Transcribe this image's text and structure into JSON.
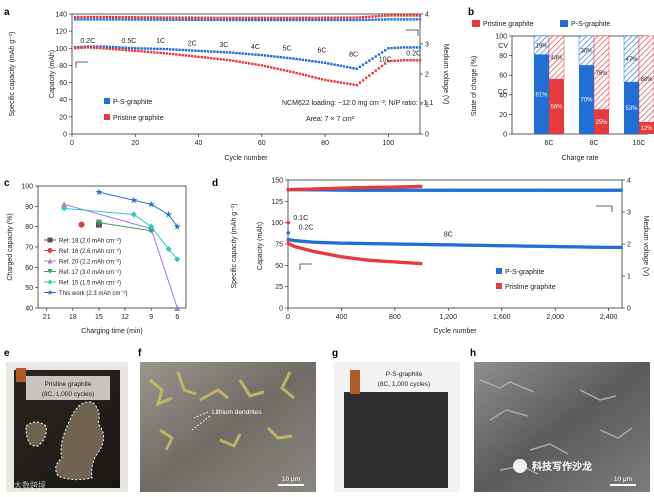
{
  "panels": {
    "a": "a",
    "b": "b",
    "c": "c",
    "d": "d",
    "e": "e",
    "f": "f",
    "g": "g",
    "h": "h"
  },
  "colors": {
    "blue": "#1f6fd6",
    "red": "#e8393c",
    "green": "#3aa35c",
    "purple": "#a678d6",
    "teal": "#2ec9c0",
    "darkgray": "#555555",
    "star": "#1f6fd6"
  },
  "chart_data": [
    {
      "id": "a",
      "type": "scatter",
      "xlabel": "Cycle number",
      "ylabel": "Specific capacity (mAh g⁻¹)",
      "ylabel_inner": "Capacity (mAh)",
      "y2label": "Medium voltage (V)",
      "xlim": [
        0,
        110
      ],
      "ylim": [
        0,
        140
      ],
      "y2lim": [
        0,
        4
      ],
      "xticks": [
        "0",
        "20",
        "40",
        "60",
        "80",
        "100"
      ],
      "yticks": [
        "0",
        "20",
        "40",
        "60",
        "80",
        "100",
        "120",
        "140"
      ],
      "y2ticks": [
        "0",
        "1",
        "2",
        "3",
        "4"
      ],
      "rate_labels": [
        "0.2C",
        "0.5C",
        "1C",
        "2C",
        "3C",
        "4C",
        "5C",
        "6C",
        "8C",
        "10C",
        "0.2C"
      ],
      "legend": [
        "P-S-graphite",
        "Pristine graphite"
      ],
      "annotations": [
        "NCM622 loading: ~12.0 mg cm⁻²; N/P ratio: ~1.1",
        "Area: 7 × 7 cm²"
      ],
      "series": [
        {
          "name": "P-S-graphite capacity",
          "x": [
            0,
            5,
            10,
            20,
            30,
            40,
            50,
            60,
            70,
            80,
            90,
            100,
            105,
            110
          ],
          "values": [
            101,
            102,
            102,
            100,
            99,
            97,
            95,
            92,
            88,
            83,
            76,
            100,
            101,
            101
          ]
        },
        {
          "name": "Pristine graphite capacity",
          "x": [
            0,
            5,
            10,
            20,
            30,
            40,
            50,
            60,
            70,
            80,
            90,
            100,
            105,
            110
          ],
          "values": [
            100,
            101,
            100,
            97,
            94,
            90,
            86,
            80,
            72,
            63,
            57,
            85,
            86,
            86
          ]
        },
        {
          "name": "P-S-graphite voltage",
          "x": [
            0,
            10,
            30,
            50,
            70,
            90,
            100,
            110
          ],
          "values": [
            3.82,
            3.82,
            3.81,
            3.8,
            3.8,
            3.8,
            3.82,
            3.82
          ]
        },
        {
          "name": "Pristine graphite voltage",
          "x": [
            0,
            10,
            30,
            50,
            70,
            90,
            100,
            110
          ],
          "values": [
            3.9,
            3.9,
            3.88,
            3.87,
            3.87,
            3.88,
            3.95,
            3.95
          ]
        }
      ]
    },
    {
      "id": "b",
      "type": "bar",
      "xlabel": "Charge rate",
      "ylabel": "State of charge (%)",
      "ylim": [
        0,
        100
      ],
      "categories": [
        "6C",
        "8C",
        "10C"
      ],
      "yticks": [
        "0",
        "20",
        "40",
        "60",
        "80",
        "100"
      ],
      "legend": [
        "Pristine graphite",
        "P-S-graphite"
      ],
      "side_labels": [
        "CV",
        "CC"
      ],
      "series": [
        {
          "name": "P-S-graphite CC",
          "values": [
            81,
            70,
            53
          ],
          "labels": [
            "81%",
            "70%",
            "53%"
          ]
        },
        {
          "name": "P-S-graphite CV",
          "values": [
            19,
            30,
            47
          ],
          "labels": [
            "19%",
            "30%",
            "47%"
          ]
        },
        {
          "name": "Pristine graphite CC",
          "values": [
            56,
            25,
            12
          ],
          "labels": [
            "56%",
            "25%",
            "12%"
          ]
        },
        {
          "name": "Pristine graphite CV",
          "values": [
            44,
            75,
            88
          ],
          "labels": [
            "44%",
            "75%",
            "88%"
          ]
        }
      ]
    },
    {
      "id": "c",
      "type": "line",
      "xlabel": "Charging time (min)",
      "ylabel": "Charged capacity (%)",
      "ylim": [
        40,
        100
      ],
      "yticks": [
        "40",
        "50",
        "60",
        "70",
        "80",
        "90",
        "100"
      ],
      "xticks": [
        "21",
        "18",
        "15",
        "12",
        "9",
        "6"
      ],
      "series": [
        {
          "name": "Ref. 18 (2.0 mAh cm⁻²)",
          "x": [
            15
          ],
          "values": [
            81
          ]
        },
        {
          "name": "Ref. 16 (2.6 mAh cm⁻²)",
          "x": [
            17
          ],
          "values": [
            81
          ]
        },
        {
          "name": "Ref. 20 (2.2 mAh cm⁻²)",
          "x": [
            19,
            9,
            6
          ],
          "values": [
            91,
            79,
            40
          ]
        },
        {
          "name": "Ref. 17 (3.0 mAh cm⁻²)",
          "x": [
            15,
            9
          ],
          "values": [
            82,
            78
          ]
        },
        {
          "name": "Ref. 15 (1.5 mAh cm⁻²)",
          "x": [
            19,
            11,
            9,
            7,
            6
          ],
          "values": [
            89,
            86,
            80,
            69,
            64
          ]
        },
        {
          "name": "This work (2.3 mAh cm⁻²)",
          "x": [
            15,
            11,
            9,
            7,
            6
          ],
          "values": [
            97,
            93,
            91,
            86,
            80
          ]
        }
      ]
    },
    {
      "id": "d",
      "type": "scatter",
      "xlabel": "Cycle number",
      "ylabel": "Specific capacity (mAh g⁻¹)",
      "ylabel_inner": "Capacity (mAh)",
      "y2label": "Medium voltage (V)",
      "xlim": [
        0,
        2500
      ],
      "ylim": [
        0,
        150
      ],
      "y2lim": [
        0,
        4
      ],
      "xticks": [
        "0",
        "400",
        "800",
        "1,200",
        "1,600",
        "2,000",
        "2,400"
      ],
      "yticks": [
        "0",
        "25",
        "50",
        "75",
        "100",
        "125",
        "150"
      ],
      "y2ticks": [
        "0",
        "1",
        "2",
        "3",
        "4"
      ],
      "rate_labels": [
        "0.1C",
        "0.2C",
        "8C"
      ],
      "legend": [
        "P-S-graphite",
        "Pristine graphite"
      ],
      "series": [
        {
          "name": "P-S-graphite capacity",
          "x": [
            0,
            10,
            50,
            200,
            400,
            800,
            1200,
            1600,
            2000,
            2400,
            2500
          ],
          "values": [
            80,
            80,
            79,
            77,
            76,
            75,
            74,
            73,
            72,
            71,
            71
          ]
        },
        {
          "name": "Pristine graphite capacity",
          "x": [
            0,
            10,
            50,
            200,
            400,
            600,
            800,
            1000
          ],
          "values": [
            78,
            75,
            72,
            66,
            60,
            56,
            54,
            52
          ]
        },
        {
          "name": "P-S-graphite voltage",
          "x": [
            0,
            500,
            1000,
            1500,
            2000,
            2500
          ],
          "values": [
            3.7,
            3.68,
            3.68,
            3.68,
            3.68,
            3.68
          ]
        },
        {
          "name": "Pristine graphite voltage",
          "x": [
            0,
            200,
            500,
            800,
            1000
          ],
          "values": [
            3.7,
            3.72,
            3.76,
            3.78,
            3.8
          ]
        }
      ]
    }
  ],
  "photos": {
    "e_title": "Pristine graphite",
    "e_subtitle": "(8C, 1,000 cycles)",
    "f_label": "Lithium dendrites",
    "f_scale": "10 μm",
    "g_title": "P-S-graphite",
    "g_subtitle": "(8C, 1,000 cycles)",
    "h_scale": "10 μm",
    "watermark_left": "大数跨境",
    "watermark_right": "科技写作沙龙"
  }
}
